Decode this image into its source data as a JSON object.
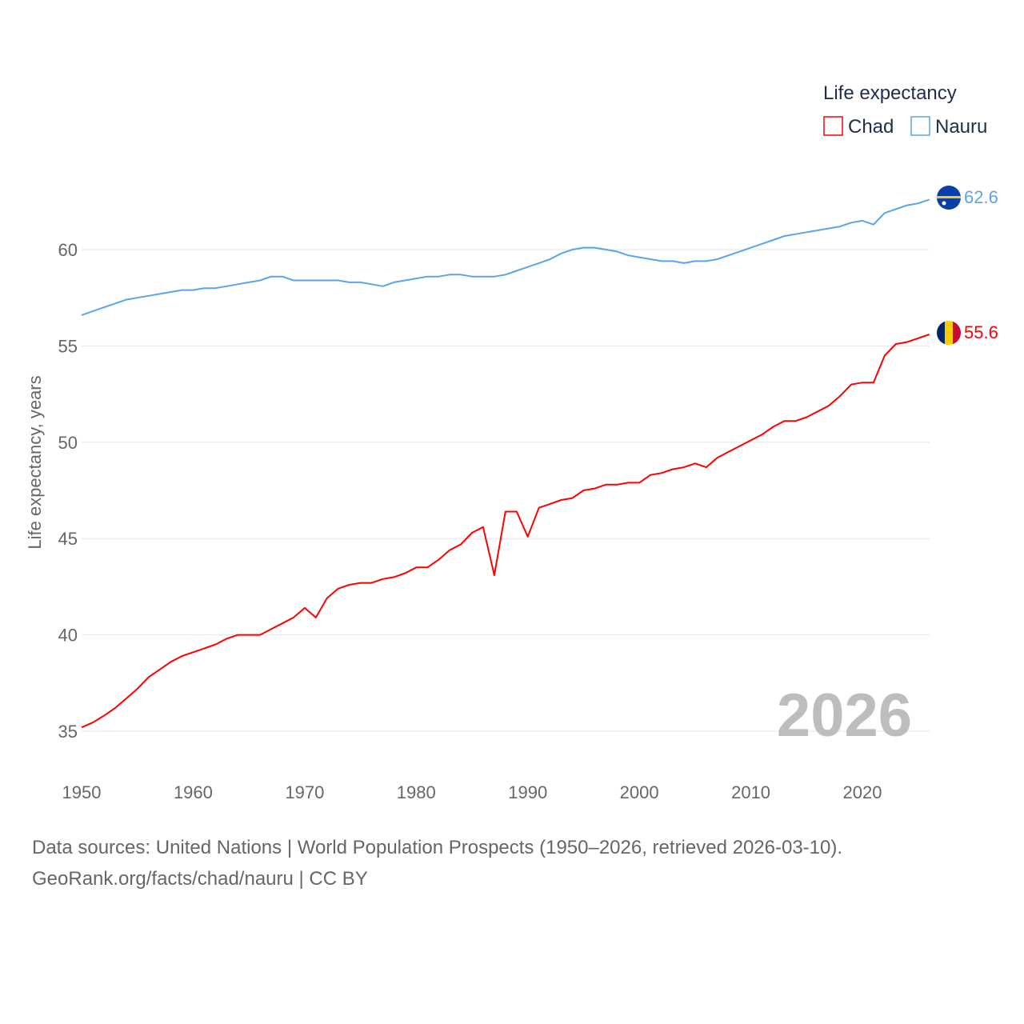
{
  "chart_data": {
    "type": "line",
    "ylabel": "Life expectancy, years",
    "xlabel": "",
    "legend_title": "Life expectancy",
    "legend_position": "top-right",
    "year_label": "2026",
    "xlim": [
      1950,
      2026
    ],
    "ylim": [
      33,
      64
    ],
    "x_ticks": [
      1950,
      1960,
      1970,
      1980,
      1990,
      2000,
      2010,
      2020
    ],
    "y_ticks": [
      35,
      40,
      45,
      50,
      55,
      60
    ],
    "grid": true,
    "x": [
      1950,
      1951,
      1952,
      1953,
      1954,
      1955,
      1956,
      1957,
      1958,
      1959,
      1960,
      1961,
      1962,
      1963,
      1964,
      1965,
      1966,
      1967,
      1968,
      1969,
      1970,
      1971,
      1972,
      1973,
      1974,
      1975,
      1976,
      1977,
      1978,
      1979,
      1980,
      1981,
      1982,
      1983,
      1984,
      1985,
      1986,
      1987,
      1988,
      1989,
      1990,
      1991,
      1992,
      1993,
      1994,
      1995,
      1996,
      1997,
      1998,
      1999,
      2000,
      2001,
      2002,
      2003,
      2004,
      2005,
      2006,
      2007,
      2008,
      2009,
      2010,
      2011,
      2012,
      2013,
      2014,
      2015,
      2016,
      2017,
      2018,
      2019,
      2020,
      2021,
      2022,
      2023,
      2024,
      2025,
      2026
    ],
    "series": [
      {
        "name": "Chad",
        "color": "#ff0000",
        "end_label": "55.6",
        "values": [
          35.2,
          35.45,
          35.8,
          36.2,
          36.7,
          37.2,
          37.8,
          38.2,
          38.6,
          38.9,
          39.1,
          39.3,
          39.5,
          39.8,
          40.0,
          40.0,
          40.0,
          40.3,
          40.6,
          40.9,
          41.4,
          40.9,
          41.9,
          42.4,
          42.6,
          42.7,
          42.7,
          42.9,
          43.0,
          43.2,
          43.5,
          43.5,
          43.9,
          44.4,
          44.7,
          45.3,
          45.6,
          43.1,
          46.4,
          46.4,
          45.1,
          46.6,
          46.8,
          47.0,
          47.1,
          47.5,
          47.6,
          47.8,
          47.8,
          47.9,
          47.9,
          48.3,
          48.4,
          48.6,
          48.7,
          48.9,
          48.7,
          49.2,
          49.5,
          49.8,
          50.1,
          50.4,
          50.8,
          51.1,
          51.1,
          51.3,
          51.6,
          51.9,
          52.4,
          53.0,
          53.1,
          53.1,
          54.5,
          55.1,
          55.2,
          55.4,
          55.6
        ]
      },
      {
        "name": "Nauru",
        "color": "#5ba4ec",
        "end_label": "62.6",
        "values": [
          56.6,
          56.8,
          57.0,
          57.2,
          57.4,
          57.5,
          57.6,
          57.7,
          57.8,
          57.9,
          57.9,
          58.0,
          58.0,
          58.1,
          58.2,
          58.3,
          58.4,
          58.6,
          58.6,
          58.4,
          58.4,
          58.4,
          58.4,
          58.4,
          58.3,
          58.3,
          58.2,
          58.1,
          58.3,
          58.4,
          58.5,
          58.6,
          58.6,
          58.7,
          58.7,
          58.6,
          58.6,
          58.6,
          58.7,
          58.9,
          59.1,
          59.3,
          59.5,
          59.8,
          60.0,
          60.1,
          60.1,
          60.0,
          59.9,
          59.7,
          59.6,
          59.5,
          59.4,
          59.4,
          59.3,
          59.4,
          59.4,
          59.5,
          59.7,
          59.9,
          60.1,
          60.3,
          60.5,
          60.7,
          60.8,
          60.9,
          61.0,
          61.1,
          61.2,
          61.4,
          61.5,
          61.3,
          61.9,
          62.1,
          62.3,
          62.4,
          62.6
        ]
      }
    ]
  },
  "footer": {
    "line1": "Data sources: United Nations | World Population Prospects (1950–2026, retrieved 2026-03-10).",
    "line2": "GeoRank.org/facts/chad/nauru | CC BY"
  }
}
